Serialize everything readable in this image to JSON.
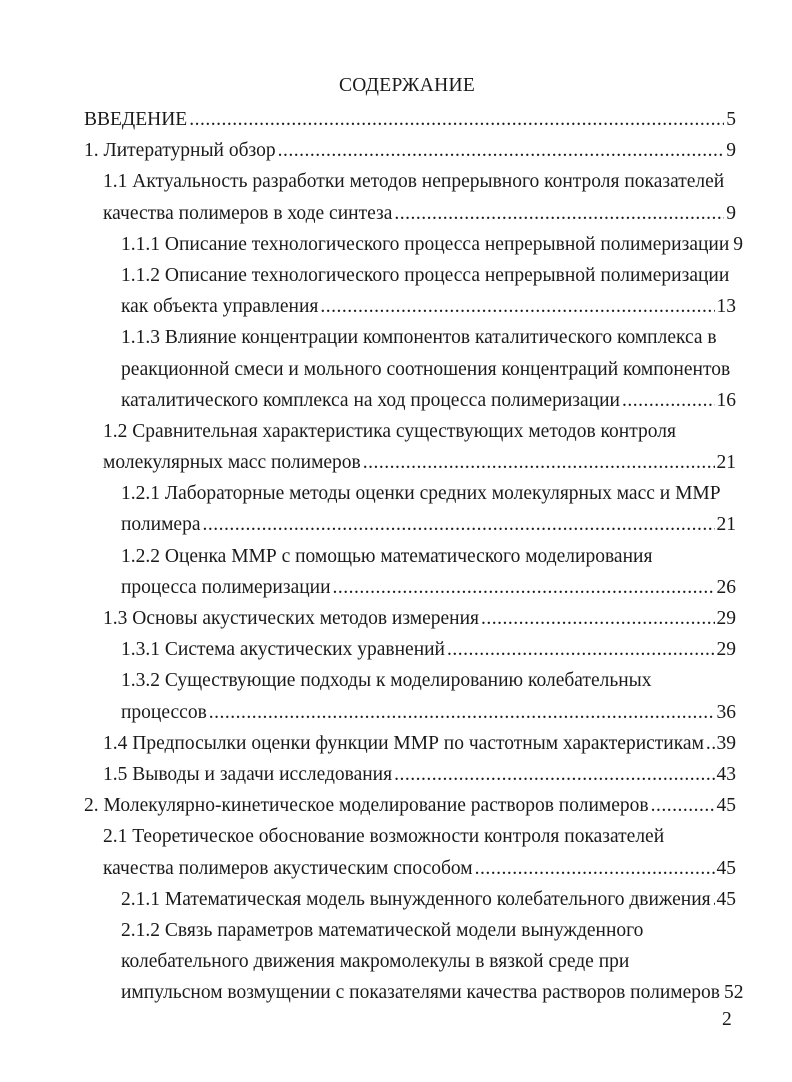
{
  "title": "СОДЕРЖАНИЕ",
  "entries": [
    {
      "level": 0,
      "lines": [
        "ВВЕДЕНИЕ"
      ],
      "page": "5"
    },
    {
      "level": 0,
      "lines": [
        "1. Литературный обзор"
      ],
      "page": "9"
    },
    {
      "level": 1,
      "lines": [
        "1.1 Актуальность разработки методов непрерывного контроля показателей",
        "качества полимеров в ходе синтеза"
      ],
      "page": "9"
    },
    {
      "level": 2,
      "lines": [
        "1.1.1 Описание технологического процесса непрерывной полимеризации"
      ],
      "page": "9"
    },
    {
      "level": 2,
      "lines": [
        "1.1.2 Описание технологического процесса непрерывной полимеризации",
        "как объекта управления"
      ],
      "page": "13"
    },
    {
      "level": 2,
      "lines": [
        "1.1.3 Влияние концентрации компонентов каталитического комплекса в",
        "реакционной смеси и мольного соотношения концентраций компонентов",
        "каталитического комплекса на ход процесса полимеризации"
      ],
      "page": "16"
    },
    {
      "level": 1,
      "lines": [
        "1.2 Сравнительная характеристика существующих методов контроля",
        "молекулярных масс полимеров"
      ],
      "page": "21"
    },
    {
      "level": 2,
      "lines": [
        "1.2.1 Лабораторные методы оценки средних молекулярных масс и ММР",
        "полимера"
      ],
      "page": "21"
    },
    {
      "level": 2,
      "lines": [
        "1.2.2 Оценка ММР с помощью математического моделирования",
        "процесса полимеризации"
      ],
      "page": "26"
    },
    {
      "level": 1,
      "lines": [
        "1.3 Основы акустических методов измерения"
      ],
      "page": "29"
    },
    {
      "level": 2,
      "lines": [
        "1.3.1 Система акустических уравнений"
      ],
      "page": "29"
    },
    {
      "level": 2,
      "lines": [
        "1.3.2 Существующие подходы к моделированию колебательных",
        "процессов"
      ],
      "page": "36"
    },
    {
      "level": 1,
      "lines": [
        "1.4 Предпосылки оценки функции ММР по частотным характеристикам"
      ],
      "page": "39"
    },
    {
      "level": 1,
      "lines": [
        "1.5 Выводы и задачи исследования"
      ],
      "page": "43"
    },
    {
      "level": 0,
      "lines": [
        "2. Молекулярно-кинетическое моделирование растворов полимеров"
      ],
      "page": "45"
    },
    {
      "level": 1,
      "lines": [
        "2.1 Теоретическое обоснование возможности контроля показателей",
        "качества полимеров акустическим способом"
      ],
      "page": "45"
    },
    {
      "level": 2,
      "lines": [
        "2.1.1 Математическая модель вынужденного колебательного движения"
      ],
      "page": "45"
    },
    {
      "level": 2,
      "lines": [
        "2.1.2 Связь параметров математической модели вынужденного",
        "колебательного движения макромолекулы в вязкой среде при",
        "импульсном возмущении с показателями качества растворов полимеров"
      ],
      "page": "52"
    }
  ],
  "page_number": "2"
}
